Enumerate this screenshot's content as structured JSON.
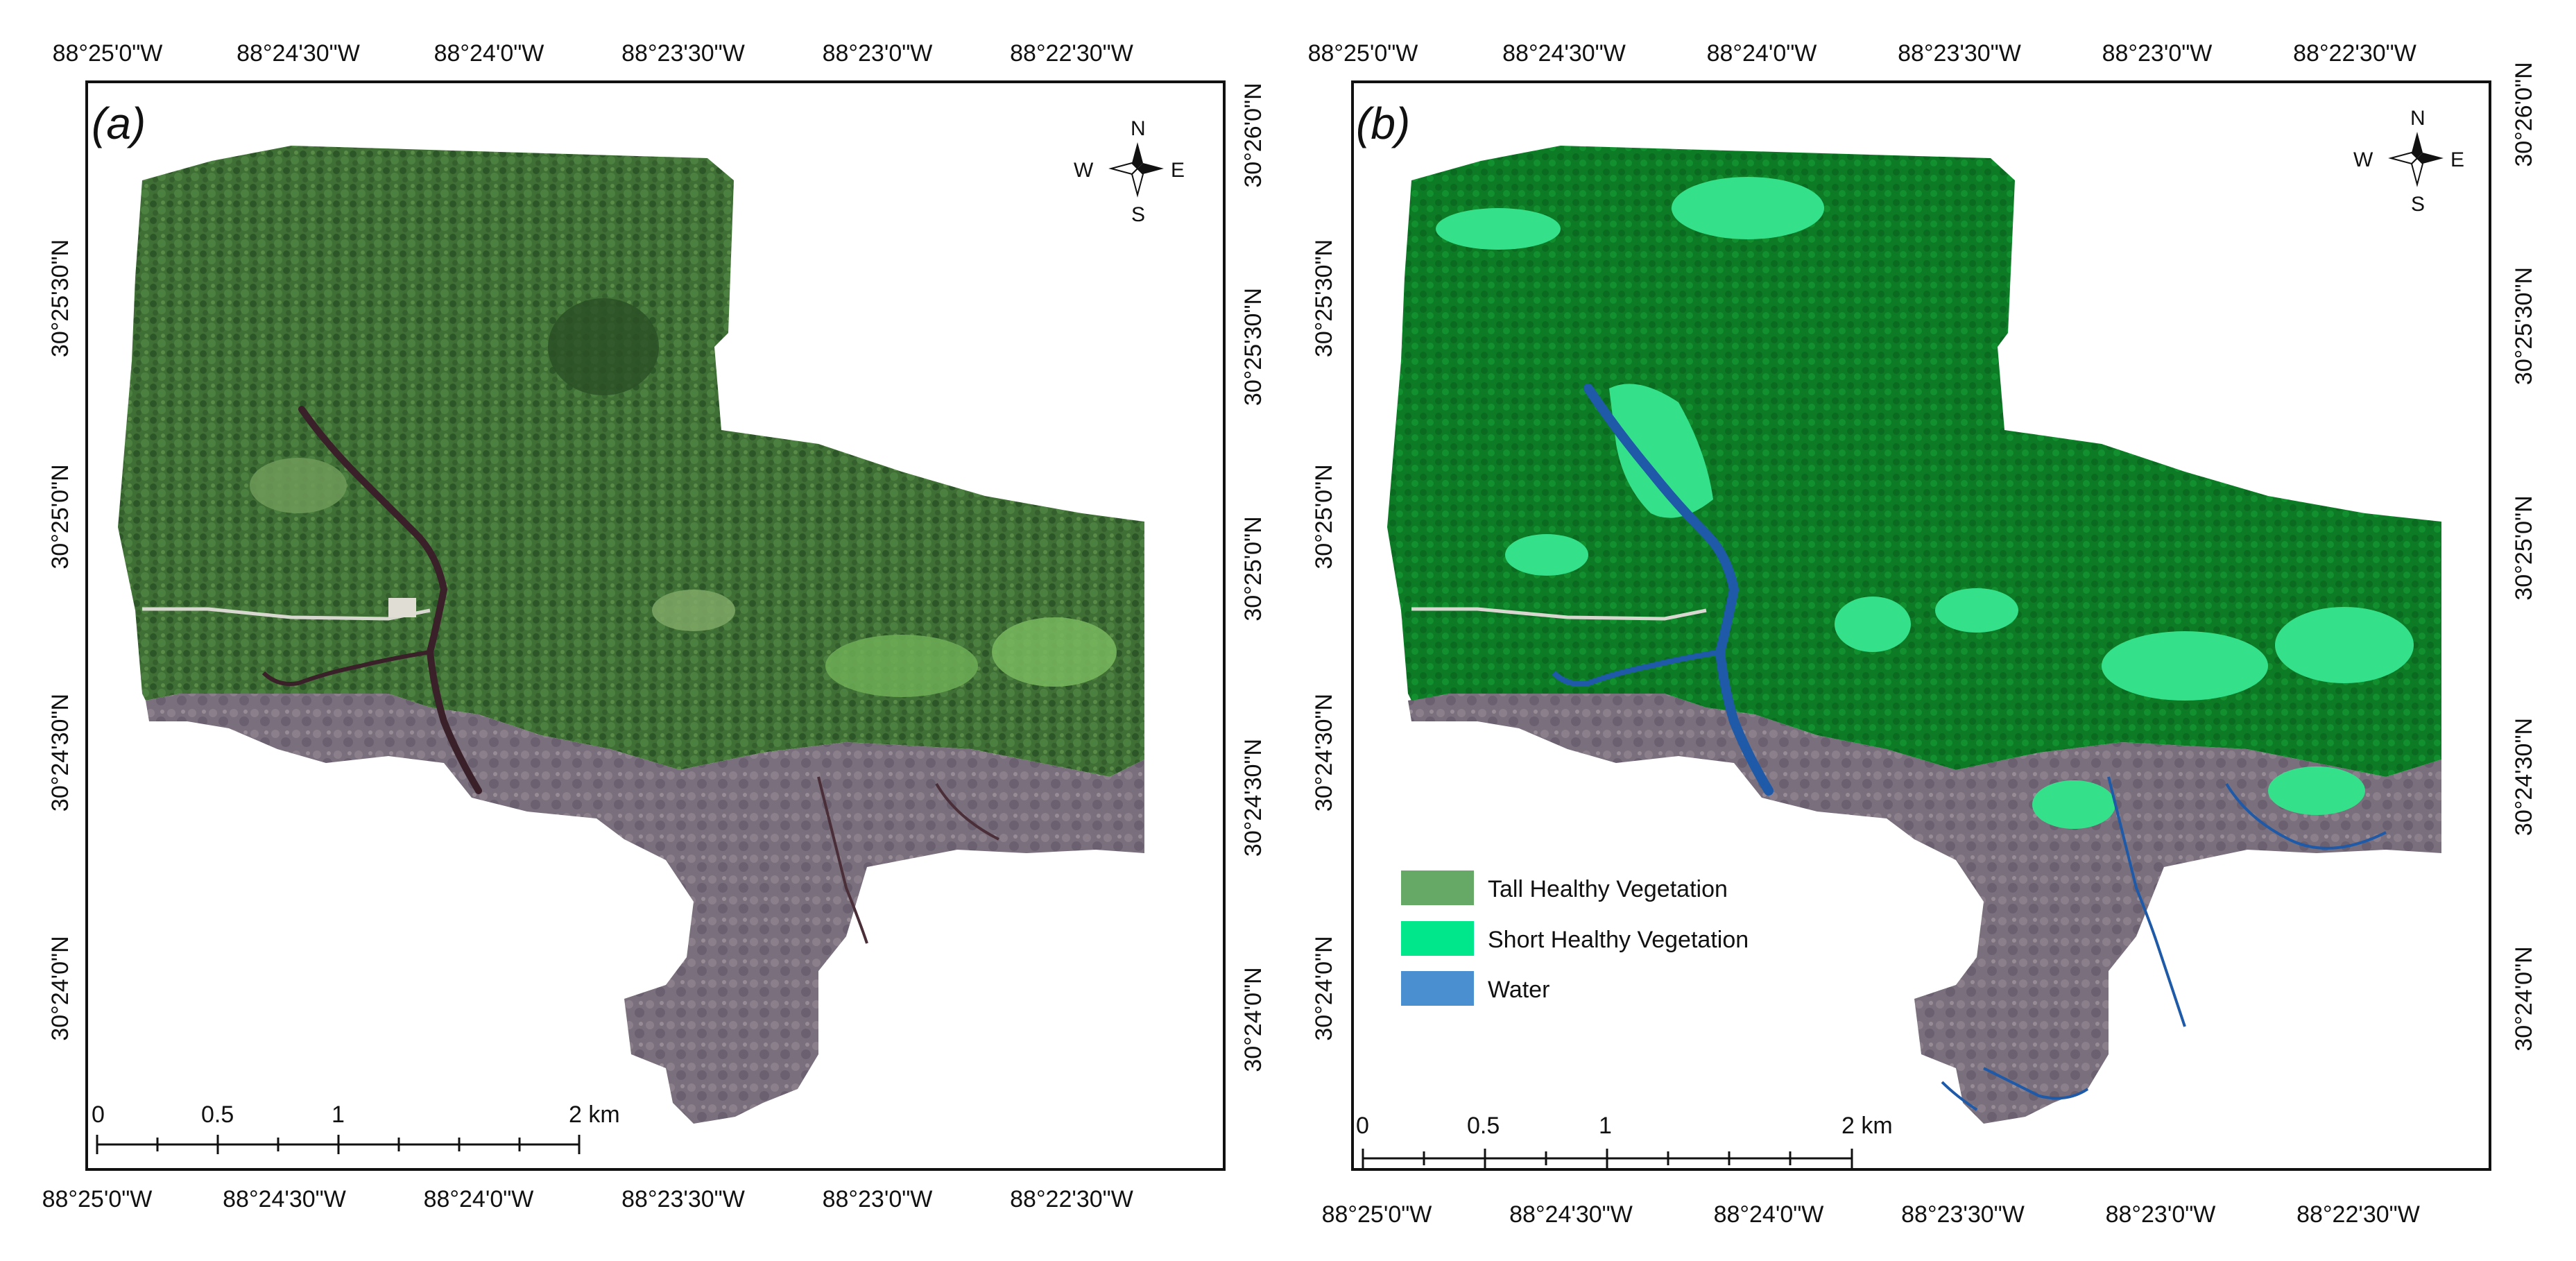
{
  "panels": [
    {
      "label": "(a)",
      "top_lon_labels": [
        "88°25'0\"W",
        "88°24'30\"W",
        "88°24'0\"W",
        "88°23'30\"W",
        "88°23'0\"W",
        "88°22'30\"W"
      ],
      "bottom_lon_labels": [
        "88°25'0\"W",
        "88°24'30\"W",
        "88°24'0\"W",
        "88°23'30\"W",
        "88°23'0\"W",
        "88°22'30\"W"
      ],
      "left_lat_labels": [
        "30°25'30\"N",
        "30°25'0\"N",
        "30°24'30\"N",
        "30°24'0\"N"
      ],
      "right_lat_labels": [
        "30°26'0\"N",
        "30°25'30\"N",
        "30°25'0\"N",
        "30°24'30\"N",
        "30°24'0\"N"
      ],
      "scale_ticks": [
        "0",
        "0.5",
        "1",
        "2 km"
      ]
    },
    {
      "label": "(b)",
      "top_lon_labels": [
        "88°25'0\"W",
        "88°24'30\"W",
        "88°24'0\"W",
        "88°23'30\"W",
        "88°23'0\"W",
        "88°22'30\"W"
      ],
      "bottom_lon_labels": [
        "88°25'0\"W",
        "88°24'30\"W",
        "88°24'0\"W",
        "88°23'30\"W",
        "88°23'0\"W",
        "88°22'30\"W"
      ],
      "left_lat_labels": [
        "30°25'30\"N",
        "30°25'0\"N",
        "30°24'30\"N",
        "30°24'0\"N"
      ],
      "right_lat_labels": [
        "30°26'0\"N",
        "30°25'30\"N",
        "30°25'0\"N",
        "30°24'30\"N",
        "30°24'0\"N"
      ],
      "scale_ticks": [
        "0",
        "0.5",
        "1",
        "2 km"
      ],
      "legend": [
        {
          "label": "Tall Healthy Vegetation",
          "color": "#66a866"
        },
        {
          "label": "Short Healthy Vegetation",
          "color": "#00e68a"
        },
        {
          "label": "Water",
          "color": "#4a90d0"
        }
      ]
    }
  ],
  "compass": {
    "n": "N",
    "s": "S",
    "e": "E",
    "w": "W"
  },
  "colors": {
    "forest_dark": "#2f5a2c",
    "forest_mid": "#4f7d40",
    "marsh": "#7c7280",
    "river_photo": "#3a2028",
    "classified_tall": "#0f8a2a",
    "classified_short": "#35e08a",
    "classified_water": "#1e5aa8"
  }
}
